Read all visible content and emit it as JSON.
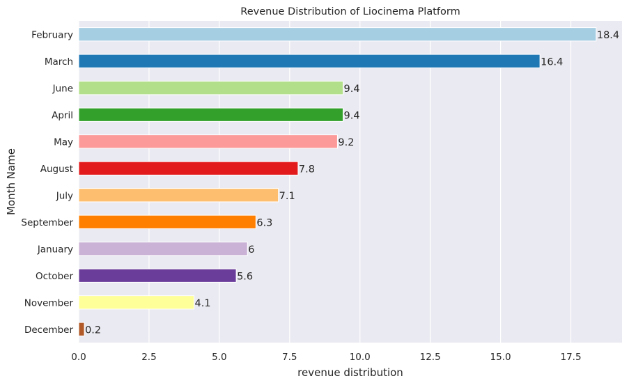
{
  "chart_data": {
    "type": "bar",
    "orientation": "horizontal",
    "title": "Revenue Distribution of Liocinema Platform",
    "xlabel": "revenue distribution",
    "ylabel": "Month Name",
    "categories": [
      "February",
      "March",
      "June",
      "April",
      "May",
      "August",
      "July",
      "September",
      "January",
      "October",
      "November",
      "December"
    ],
    "values": [
      18.4,
      16.4,
      9.4,
      9.4,
      9.2,
      7.8,
      7.1,
      6.3,
      6,
      5.6,
      4.1,
      0.2
    ],
    "value_labels": [
      "18.4",
      "16.4",
      "9.4",
      "9.4",
      "9.2",
      "7.8",
      "7.1",
      "6.3",
      "6",
      "5.6",
      "4.1",
      "0.2"
    ],
    "colors": [
      "#a6cee3",
      "#1f78b4",
      "#b2df8a",
      "#33a02c",
      "#fb9a99",
      "#e31a1c",
      "#fdbf6f",
      "#ff7f00",
      "#cab2d6",
      "#6a3d9a",
      "#ffff99",
      "#b15928"
    ],
    "xticks": [
      0.0,
      2.5,
      5.0,
      7.5,
      10.0,
      12.5,
      15.0,
      17.5
    ],
    "xtick_labels": [
      "0.0",
      "2.5",
      "5.0",
      "7.5",
      "10.0",
      "12.5",
      "15.0",
      "17.5"
    ],
    "xlim": [
      0,
      19.32
    ],
    "grid": true,
    "background": "#eaeaf2",
    "gridColor": "#ffffff"
  }
}
